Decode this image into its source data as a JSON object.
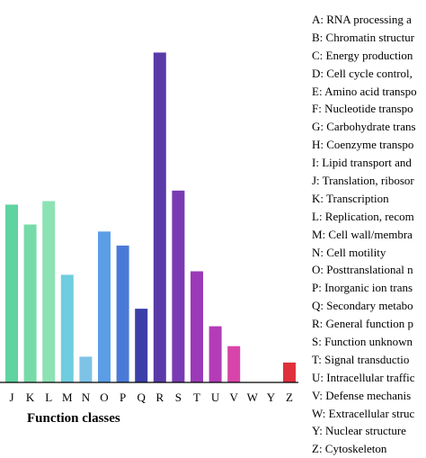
{
  "chart_data": {
    "type": "bar",
    "xlabel": "Function classes",
    "categories": [
      "J",
      "K",
      "L",
      "M",
      "N",
      "O",
      "P",
      "Q",
      "R",
      "S",
      "T",
      "U",
      "V",
      "W",
      "Y",
      "Z"
    ],
    "values": [
      152,
      135,
      155,
      92,
      22,
      129,
      117,
      63,
      282,
      164,
      95,
      48,
      31,
      0,
      0,
      17
    ],
    "colors": [
      "#5fd3a0",
      "#76dba8",
      "#8de2b4",
      "#6fcde0",
      "#7ec3e6",
      "#5b9ee6",
      "#4a7ad8",
      "#3b3fa8",
      "#5a3aa8",
      "#7a3ab3",
      "#9a3ab8",
      "#b43cb8",
      "#d845aa",
      "#ffffff",
      "#ffffff",
      "#e0303c"
    ],
    "ylim": [
      0,
      300
    ],
    "grid": false
  },
  "legend": [
    "A: RNA processing a",
    "B: Chromatin structur",
    "C: Energy production",
    "D: Cell cycle control,",
    "E: Amino acid transpo",
    "F: Nucleotide transpo",
    "G: Carbohydrate trans",
    "H: Coenzyme transpo",
    "I: Lipid transport and",
    "J: Translation, ribosor",
    "K: Transcription",
    "L: Replication, recom",
    "M: Cell wall/membra",
    "N: Cell motility",
    "O: Posttranslational n",
    "P: Inorganic ion trans",
    "Q: Secondary metabo",
    "R: General function p",
    "S: Function unknown",
    "T: Signal transductio",
    "U: Intracellular traffic",
    "V: Defense mechanis",
    "W: Extracellular struc",
    "Y: Nuclear structure",
    "Z: Cytoskeleton"
  ]
}
